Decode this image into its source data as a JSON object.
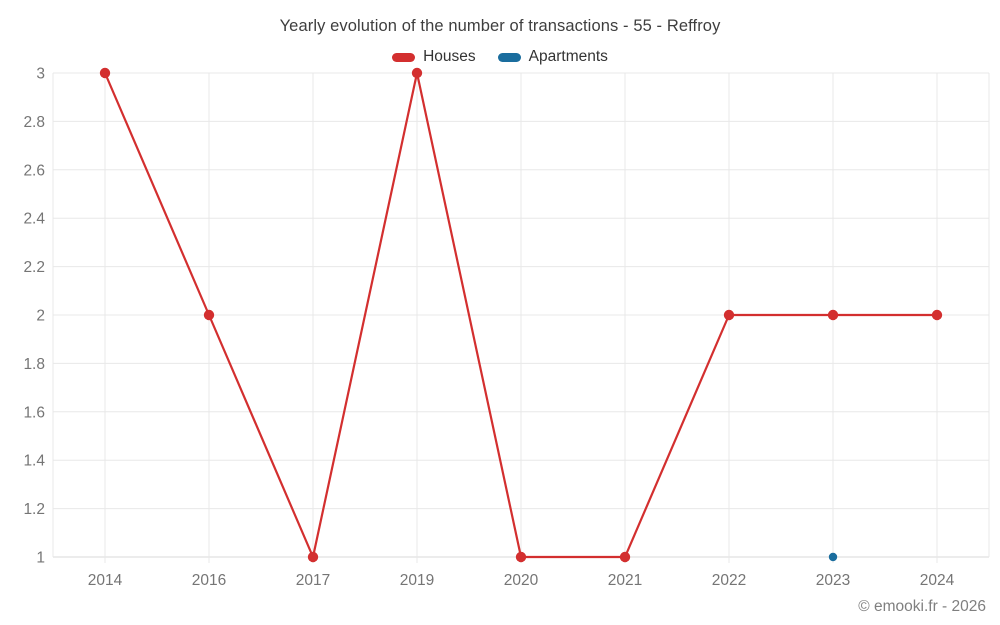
{
  "page": {
    "footer": "© emooki.fr - 2026"
  },
  "legend": {
    "items": [
      {
        "label": "Houses",
        "color": "#d32f2f"
      },
      {
        "label": "Apartments",
        "color": "#1a6d9e"
      }
    ]
  },
  "chart_data": {
    "type": "line",
    "title": "Yearly evolution of the number of transactions - 55 - Reffroy",
    "categories": [
      "2014",
      "2016",
      "2017",
      "2019",
      "2020",
      "2021",
      "2022",
      "2023",
      "2024"
    ],
    "series": [
      {
        "name": "Houses",
        "color": "#d32f2f",
        "values": [
          3,
          2,
          1,
          3,
          1,
          1,
          2,
          2,
          2
        ]
      },
      {
        "name": "Apartments",
        "color": "#1a6d9e",
        "values": [
          null,
          null,
          null,
          null,
          null,
          null,
          null,
          1,
          null
        ]
      }
    ],
    "xlabel": "",
    "ylabel": "",
    "ylim": [
      1,
      3
    ],
    "yticks": [
      1,
      1.2,
      1.4,
      1.6,
      1.8,
      2,
      2.2,
      2.4,
      2.6,
      2.8,
      3
    ],
    "grid": true,
    "legend_position": "top"
  },
  "colors": {
    "grid": "#e8e8e8",
    "axis_line": "#d8d8d8",
    "axis_label": "#757575",
    "title_text": "#3e3e3e",
    "legend_text": "#333333",
    "footer_text": "#7f7f7f",
    "background": "#ffffff"
  }
}
